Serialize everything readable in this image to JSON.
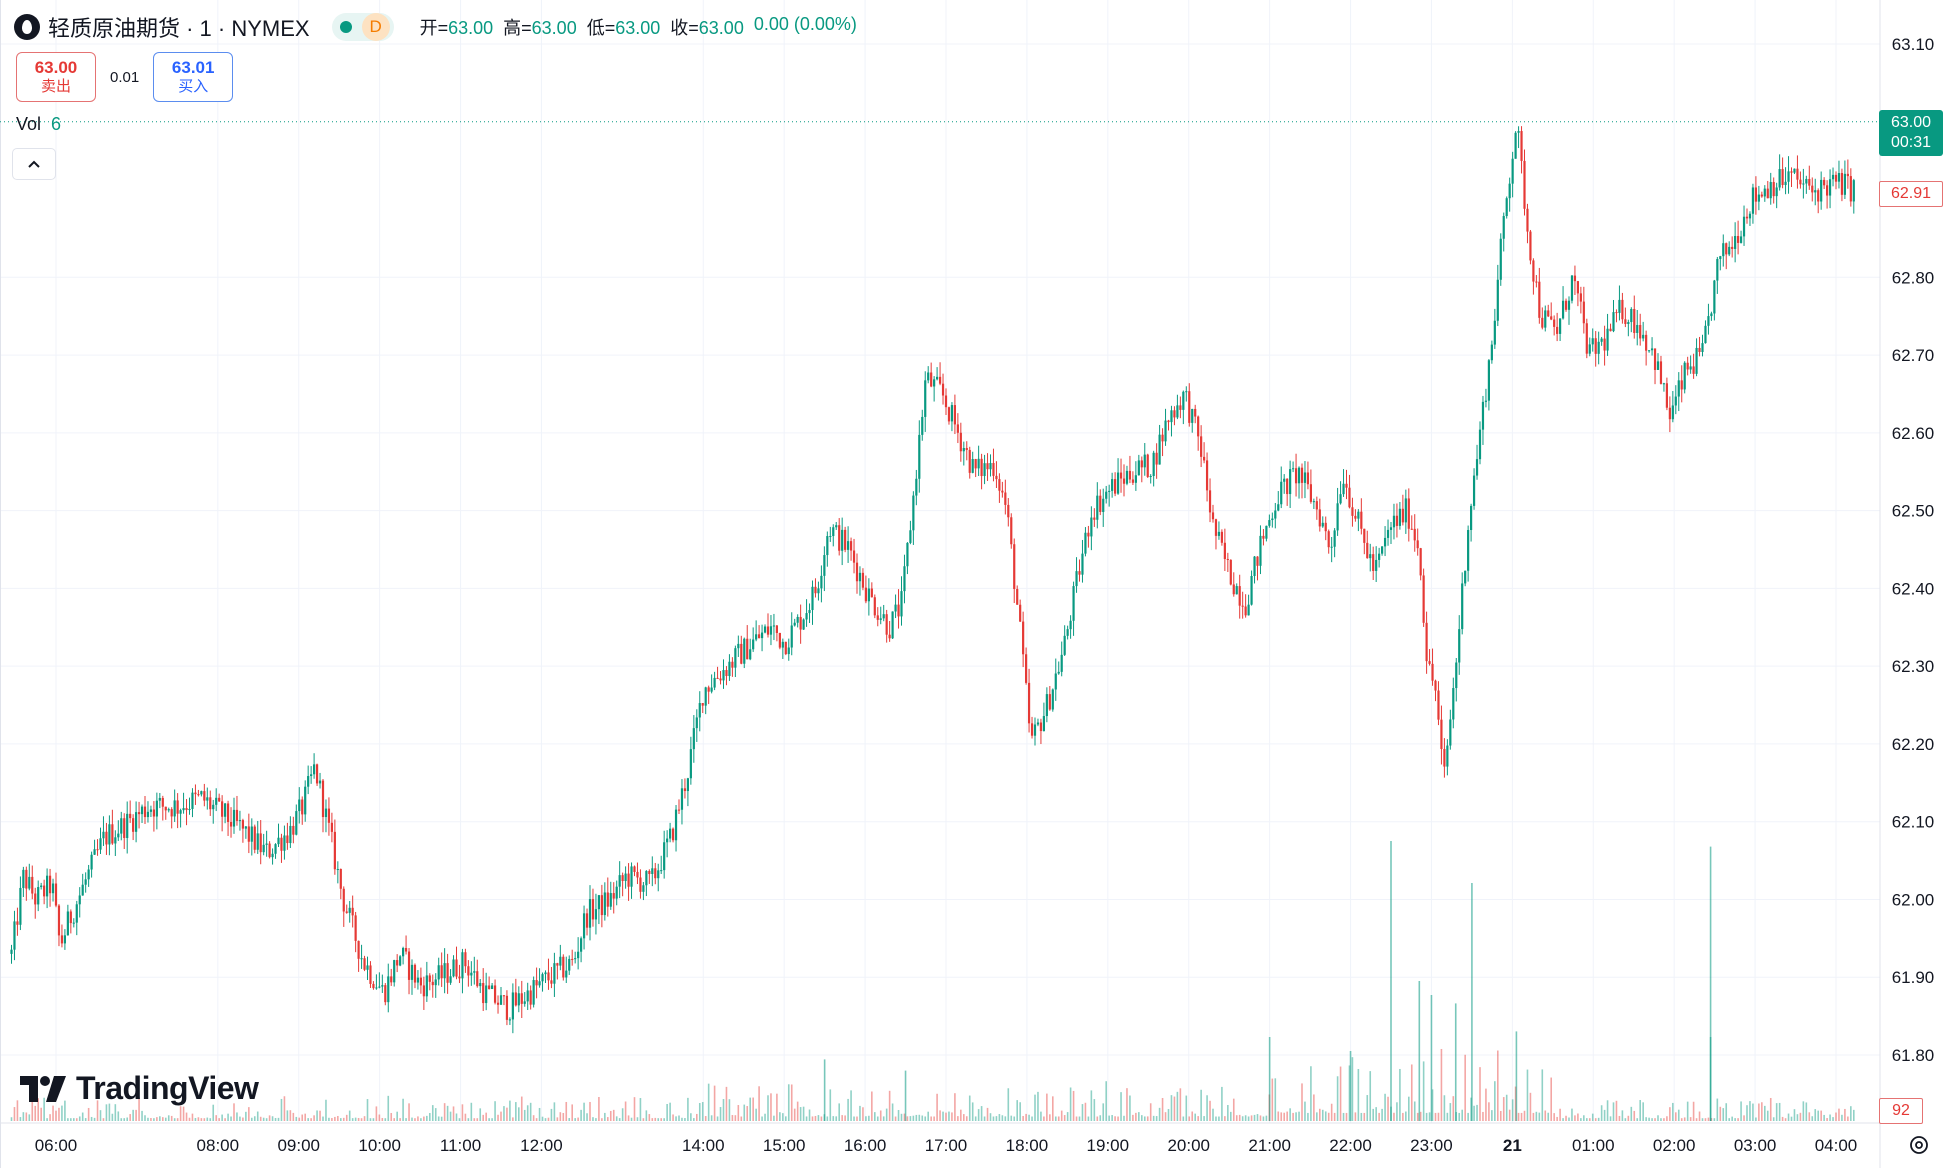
{
  "header": {
    "symbol_title": "轻质原油期货 · 1 · NYMEX",
    "status_badge": "D",
    "ohlc": [
      {
        "label": "开=",
        "value": "63.00"
      },
      {
        "label": "高=",
        "value": "63.00"
      },
      {
        "label": "低=",
        "value": "63.00"
      },
      {
        "label": "收=",
        "value": "63.00"
      },
      {
        "label": "",
        "value": "0.00 (0.00%)"
      }
    ]
  },
  "trade": {
    "sell_price": "63.00",
    "sell_label": "卖出",
    "spread": "0.01",
    "buy_price": "63.01",
    "buy_label": "买入"
  },
  "volume_legend": {
    "label": "Vol",
    "value": "6"
  },
  "badges": {
    "last_price": "63.00",
    "countdown": "00:31",
    "bid_price": "62.91",
    "volume": "92"
  },
  "watermark": {
    "text": "TradingView"
  },
  "colors": {
    "up": "#089981",
    "down": "#e53935",
    "grid": "#f0f3fa",
    "text": "#131722"
  },
  "icons": {
    "collapse": "chevron-up-icon",
    "settings": "settings-icon",
    "logo": "oil-drop-icon"
  },
  "chart_data": {
    "type": "candlestick",
    "y_ticks": [
      "63.10",
      "62.80",
      "62.70",
      "62.60",
      "62.50",
      "62.40",
      "62.30",
      "62.20",
      "62.10",
      "62.00",
      "61.90",
      "61.80"
    ],
    "ylim": [
      61.72,
      63.13
    ],
    "x_ticks": [
      "06:00",
      "08:00",
      "09:00",
      "10:00",
      "11:00",
      "12:00",
      "14:00",
      "15:00",
      "16:00",
      "17:00",
      "18:00",
      "19:00",
      "20:00",
      "21:00",
      "22:00",
      "23:00",
      "21",
      "01:00",
      "02:00",
      "03:00",
      "04:00"
    ],
    "x_tick_hours": [
      6,
      8,
      9,
      10,
      11,
      12,
      14,
      15,
      16,
      17,
      18,
      19,
      20,
      21,
      22,
      23,
      24,
      25,
      26,
      27,
      28
    ],
    "x_range_hours": [
      5.42,
      28.5
    ],
    "last_price_line": 63.0,
    "grid": true,
    "price_path": [
      {
        "t": 5.45,
        "p": 61.93
      },
      {
        "t": 5.6,
        "p": 62.03
      },
      {
        "t": 5.75,
        "p": 62.0
      },
      {
        "t": 5.95,
        "p": 62.02
      },
      {
        "t": 6.05,
        "p": 61.94
      },
      {
        "t": 6.15,
        "p": 61.97
      },
      {
        "t": 6.35,
        "p": 62.02
      },
      {
        "t": 6.6,
        "p": 62.08
      },
      {
        "t": 6.9,
        "p": 62.1
      },
      {
        "t": 7.15,
        "p": 62.12
      },
      {
        "t": 7.5,
        "p": 62.12
      },
      {
        "t": 7.8,
        "p": 62.13
      },
      {
        "t": 8.05,
        "p": 62.11
      },
      {
        "t": 8.3,
        "p": 62.09
      },
      {
        "t": 8.6,
        "p": 62.06
      },
      {
        "t": 8.9,
        "p": 62.09
      },
      {
        "t": 9.05,
        "p": 62.12
      },
      {
        "t": 9.2,
        "p": 62.17
      },
      {
        "t": 9.35,
        "p": 62.1
      },
      {
        "t": 9.55,
        "p": 62.0
      },
      {
        "t": 9.8,
        "p": 61.92
      },
      {
        "t": 10.05,
        "p": 61.88
      },
      {
        "t": 10.25,
        "p": 61.93
      },
      {
        "t": 10.5,
        "p": 61.89
      },
      {
        "t": 10.75,
        "p": 61.9
      },
      {
        "t": 11.05,
        "p": 61.92
      },
      {
        "t": 11.3,
        "p": 61.88
      },
      {
        "t": 11.6,
        "p": 61.86
      },
      {
        "t": 11.85,
        "p": 61.88
      },
      {
        "t": 12.1,
        "p": 61.9
      },
      {
        "t": 12.4,
        "p": 61.92
      },
      {
        "t": 12.55,
        "p": 61.98
      },
      {
        "t": 12.85,
        "p": 62.0
      },
      {
        "t": 13.05,
        "p": 62.03
      },
      {
        "t": 13.35,
        "p": 62.02
      },
      {
        "t": 13.6,
        "p": 62.08
      },
      {
        "t": 13.8,
        "p": 62.16
      },
      {
        "t": 14.0,
        "p": 62.27
      },
      {
        "t": 14.3,
        "p": 62.3
      },
      {
        "t": 14.6,
        "p": 62.33
      },
      {
        "t": 14.85,
        "p": 62.35
      },
      {
        "t": 15.0,
        "p": 62.33
      },
      {
        "t": 15.2,
        "p": 62.36
      },
      {
        "t": 15.4,
        "p": 62.4
      },
      {
        "t": 15.55,
        "p": 62.48
      },
      {
        "t": 15.8,
        "p": 62.45
      },
      {
        "t": 16.05,
        "p": 62.39
      },
      {
        "t": 16.3,
        "p": 62.35
      },
      {
        "t": 16.45,
        "p": 62.38
      },
      {
        "t": 16.6,
        "p": 62.52
      },
      {
        "t": 16.75,
        "p": 62.67
      },
      {
        "t": 16.95,
        "p": 62.65
      },
      {
        "t": 17.15,
        "p": 62.6
      },
      {
        "t": 17.35,
        "p": 62.55
      },
      {
        "t": 17.6,
        "p": 62.56
      },
      {
        "t": 17.75,
        "p": 62.5
      },
      {
        "t": 17.9,
        "p": 62.36
      },
      {
        "t": 18.05,
        "p": 62.2
      },
      {
        "t": 18.25,
        "p": 62.25
      },
      {
        "t": 18.45,
        "p": 62.32
      },
      {
        "t": 18.6,
        "p": 62.4
      },
      {
        "t": 18.8,
        "p": 62.5
      },
      {
        "t": 19.05,
        "p": 62.53
      },
      {
        "t": 19.3,
        "p": 62.55
      },
      {
        "t": 19.55,
        "p": 62.56
      },
      {
        "t": 19.75,
        "p": 62.62
      },
      {
        "t": 19.95,
        "p": 62.65
      },
      {
        "t": 20.15,
        "p": 62.58
      },
      {
        "t": 20.3,
        "p": 62.48
      },
      {
        "t": 20.5,
        "p": 62.42
      },
      {
        "t": 20.7,
        "p": 62.38
      },
      {
        "t": 20.9,
        "p": 62.46
      },
      {
        "t": 21.1,
        "p": 62.52
      },
      {
        "t": 21.35,
        "p": 62.55
      },
      {
        "t": 21.6,
        "p": 62.5
      },
      {
        "t": 21.75,
        "p": 62.45
      },
      {
        "t": 21.9,
        "p": 62.55
      },
      {
        "t": 22.1,
        "p": 62.48
      },
      {
        "t": 22.3,
        "p": 62.42
      },
      {
        "t": 22.5,
        "p": 62.48
      },
      {
        "t": 22.7,
        "p": 62.5
      },
      {
        "t": 22.85,
        "p": 62.45
      },
      {
        "t": 22.95,
        "p": 62.3
      },
      {
        "t": 23.05,
        "p": 62.27
      },
      {
        "t": 23.15,
        "p": 62.15
      },
      {
        "t": 23.3,
        "p": 62.3
      },
      {
        "t": 23.45,
        "p": 62.48
      },
      {
        "t": 23.6,
        "p": 62.6
      },
      {
        "t": 23.75,
        "p": 62.72
      },
      {
        "t": 23.9,
        "p": 62.88
      },
      {
        "t": 24.05,
        "p": 63.0
      },
      {
        "t": 24.2,
        "p": 62.85
      },
      {
        "t": 24.35,
        "p": 62.75
      },
      {
        "t": 24.55,
        "p": 62.73
      },
      {
        "t": 24.75,
        "p": 62.8
      },
      {
        "t": 24.95,
        "p": 62.7
      },
      {
        "t": 25.15,
        "p": 62.72
      },
      {
        "t": 25.35,
        "p": 62.76
      },
      {
        "t": 25.55,
        "p": 62.74
      },
      {
        "t": 25.75,
        "p": 62.7
      },
      {
        "t": 25.95,
        "p": 62.62
      },
      {
        "t": 26.15,
        "p": 62.68
      },
      {
        "t": 26.35,
        "p": 62.7
      },
      {
        "t": 26.55,
        "p": 62.82
      },
      {
        "t": 26.75,
        "p": 62.85
      },
      {
        "t": 26.95,
        "p": 62.9
      },
      {
        "t": 27.2,
        "p": 62.92
      },
      {
        "t": 27.45,
        "p": 62.93
      },
      {
        "t": 27.7,
        "p": 62.91
      },
      {
        "t": 27.95,
        "p": 62.92
      },
      {
        "t": 28.1,
        "p": 62.92
      },
      {
        "t": 28.25,
        "p": 62.91
      }
    ],
    "volume_spikes": [
      {
        "t": 22.5,
        "v": 1.0
      },
      {
        "t": 23.5,
        "v": 0.85
      },
      {
        "t": 23.0,
        "v": 0.45
      },
      {
        "t": 22.85,
        "v": 0.5
      },
      {
        "t": 26.45,
        "v": 0.98
      },
      {
        "t": 26.45,
        "v": 0.3
      },
      {
        "t": 21.0,
        "v": 0.3
      },
      {
        "t": 15.5,
        "v": 0.22
      },
      {
        "t": 16.5,
        "v": 0.18
      },
      {
        "t": 22.0,
        "v": 0.25
      },
      {
        "t": 24.05,
        "v": 0.32
      },
      {
        "t": 23.3,
        "v": 0.42
      }
    ]
  }
}
